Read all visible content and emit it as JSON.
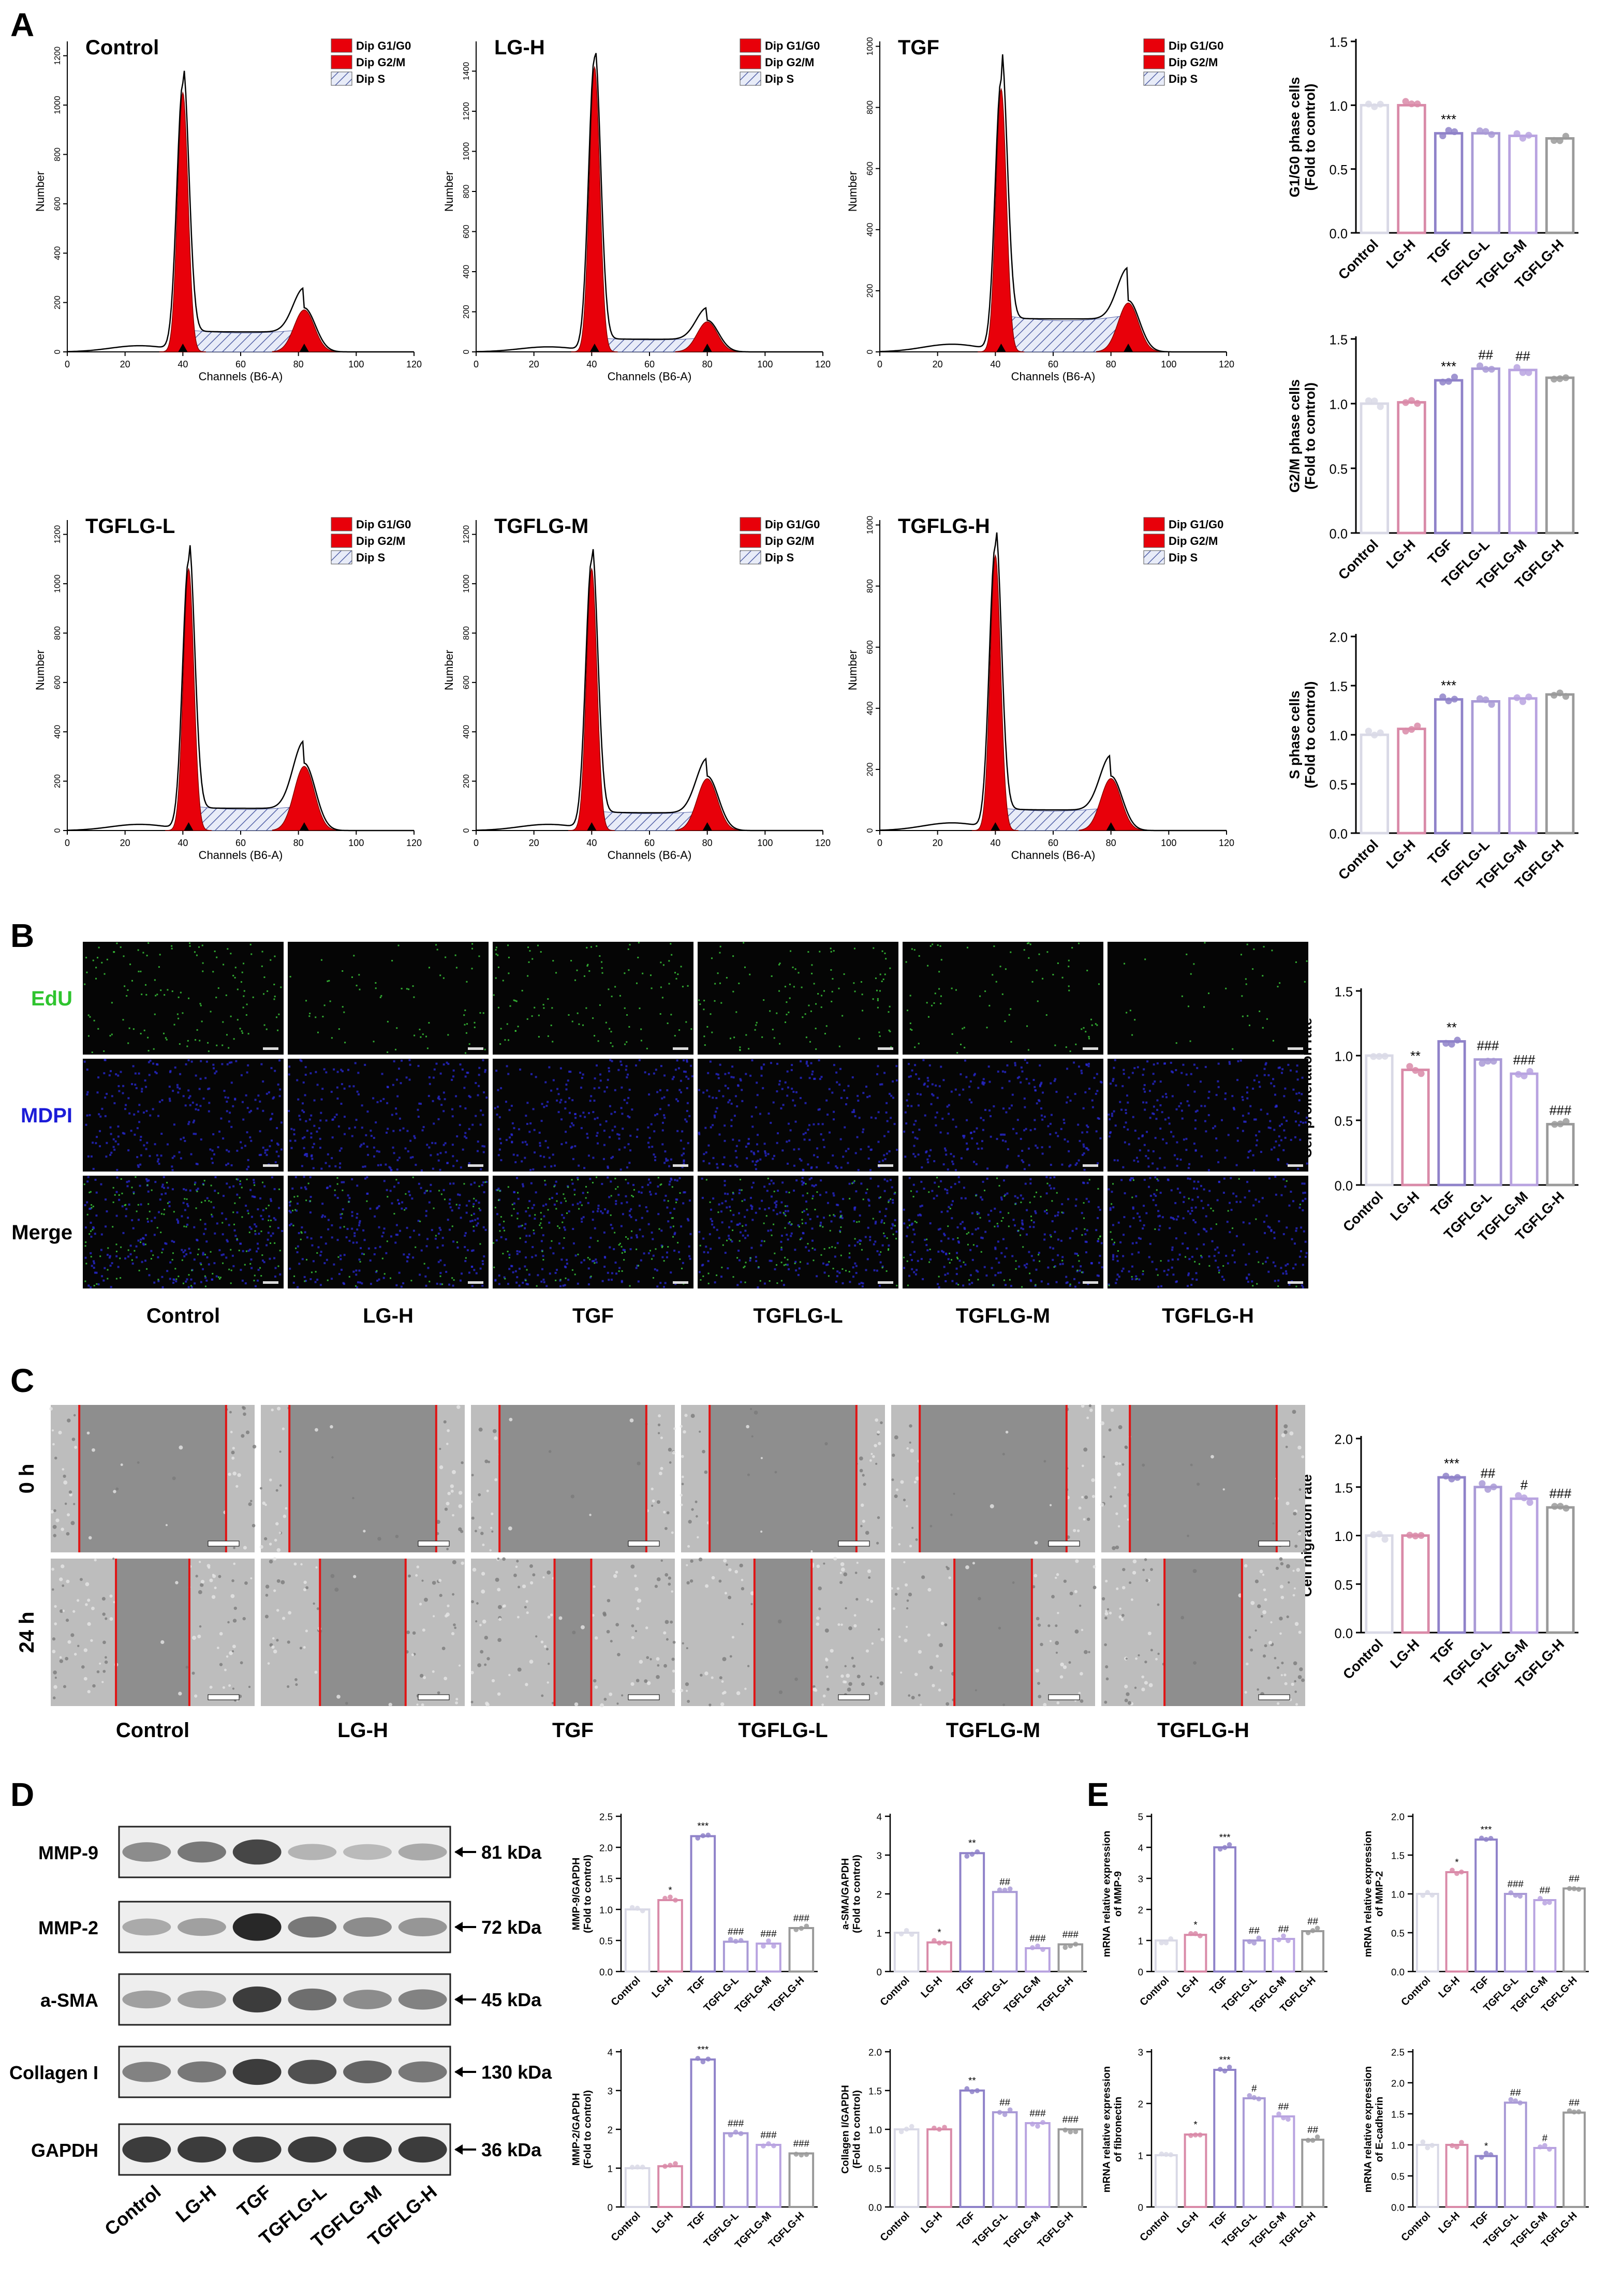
{
  "panel_labels": [
    "A",
    "B",
    "C",
    "D",
    "E"
  ],
  "groups": [
    "Control",
    "LG-H",
    "TGF",
    "TGFLG-L",
    "TGFLG-M",
    "TGFLG-H"
  ],
  "group_colors": [
    "#d9d9e6",
    "#d98aa8",
    "#8f82c9",
    "#a99ad6",
    "#b8a3e0",
    "#9a9a9a"
  ],
  "histograms": {
    "legend": [
      "Dip G1/G0",
      "Dip G2/M",
      "Dip S"
    ],
    "xlabel": "Channels (B6-A)",
    "ylabel": "Number",
    "xticks": [
      0,
      20,
      40,
      60,
      80,
      100,
      120
    ],
    "items": [
      {
        "title": "Control",
        "g1_pos": 40,
        "g1_height": 1050,
        "g2_pos": 82,
        "g2_height": 170,
        "s_level": 90,
        "ymax": 1300,
        "yticks": [
          0,
          200,
          400,
          600,
          800,
          1000,
          1200
        ]
      },
      {
        "title": "LG-H",
        "g1_pos": 41,
        "g1_height": 1420,
        "g2_pos": 80,
        "g2_height": 150,
        "s_level": 70,
        "ymax": 1600,
        "yticks": [
          0,
          200,
          400,
          600,
          800,
          1000,
          1200,
          1400
        ]
      },
      {
        "title": "TGF",
        "g1_pos": 42,
        "g1_height": 860,
        "g2_pos": 86,
        "g2_height": 160,
        "s_level": 120,
        "ymax": 1050,
        "yticks": [
          0,
          200,
          400,
          600,
          800,
          1000
        ]
      },
      {
        "title": "TGFLG-L",
        "g1_pos": 42,
        "g1_height": 1060,
        "g2_pos": 82,
        "g2_height": 260,
        "s_level": 100,
        "ymax": 1300,
        "yticks": [
          0,
          200,
          400,
          600,
          800,
          1000,
          1200
        ]
      },
      {
        "title": "TGFLG-M",
        "g1_pos": 40,
        "g1_height": 1060,
        "g2_pos": 80,
        "g2_height": 210,
        "s_level": 80,
        "ymax": 1300,
        "yticks": [
          0,
          200,
          400,
          600,
          800,
          1000,
          1200
        ]
      },
      {
        "title": "TGFLG-H",
        "g1_pos": 40,
        "g1_height": 900,
        "g2_pos": 80,
        "g2_height": 170,
        "s_level": 75,
        "ymax": 1050,
        "yticks": [
          0,
          200,
          400,
          600,
          800,
          1000
        ]
      }
    ]
  },
  "chart_data": [
    {
      "id": "g1",
      "type": "bar",
      "categories": [
        "Control",
        "LG-H",
        "TGF",
        "TGFLG-L",
        "TGFLG-M",
        "TGFLG-H"
      ],
      "values": [
        1.0,
        1.0,
        0.78,
        0.78,
        0.76,
        0.74
      ],
      "ylabel": "G1/G0 phase cells (Fold to control)",
      "ylim": [
        0,
        1.5
      ],
      "yticks": [
        0.0,
        0.5,
        1.0,
        1.5
      ],
      "annotations": [
        "",
        "",
        "***",
        "",
        "",
        ""
      ]
    },
    {
      "id": "g2m",
      "type": "bar",
      "categories": [
        "Control",
        "LG-H",
        "TGF",
        "TGFLG-L",
        "TGFLG-M",
        "TGFLG-H"
      ],
      "values": [
        1.0,
        1.01,
        1.18,
        1.27,
        1.26,
        1.2
      ],
      "ylabel": "G2/M phase cells (Fold to control)",
      "ylim": [
        0,
        1.5
      ],
      "yticks": [
        0.0,
        0.5,
        1.0,
        1.5
      ],
      "annotations": [
        "",
        "",
        "***",
        "##",
        "##",
        ""
      ]
    },
    {
      "id": "s",
      "type": "bar",
      "categories": [
        "Control",
        "LG-H",
        "TGF",
        "TGFLG-L",
        "TGFLG-M",
        "TGFLG-H"
      ],
      "values": [
        1.0,
        1.06,
        1.36,
        1.34,
        1.37,
        1.41
      ],
      "ylabel": "S phase cells (Fold to control)",
      "ylim": [
        0,
        2.0
      ],
      "yticks": [
        0.0,
        0.5,
        1.0,
        1.5,
        2.0
      ],
      "annotations": [
        "",
        "",
        "***",
        "",
        "",
        ""
      ]
    },
    {
      "id": "edu",
      "type": "bar",
      "categories": [
        "Control",
        "LG-H",
        "TGF",
        "TGFLG-L",
        "TGFLG-M",
        "TGFLG-H"
      ],
      "values": [
        1.0,
        0.89,
        1.11,
        0.97,
        0.86,
        0.47
      ],
      "ylabel": "Cell proliferation rate",
      "ylim": [
        0,
        1.5
      ],
      "yticks": [
        0.0,
        0.5,
        1.0,
        1.5
      ],
      "annotations": [
        "",
        "**",
        "**",
        "###",
        "###",
        "###"
      ]
    },
    {
      "id": "mig",
      "type": "bar",
      "categories": [
        "Control",
        "LG-H",
        "TGF",
        "TGFLG-L",
        "TGFLG-M",
        "TGFLG-H"
      ],
      "values": [
        1.0,
        1.0,
        1.6,
        1.5,
        1.38,
        1.29
      ],
      "ylabel": "Cell migration rate",
      "ylim": [
        0,
        2.0
      ],
      "yticks": [
        0.0,
        0.5,
        1.0,
        1.5,
        2.0
      ],
      "annotations": [
        "",
        "",
        "***",
        "##",
        "#",
        "###"
      ]
    },
    {
      "id": "mmp9",
      "type": "bar",
      "categories": [
        "Control",
        "LG-H",
        "TGF",
        "TGFLG-L",
        "TGFLG-M",
        "TGFLG-H"
      ],
      "values": [
        1.0,
        1.15,
        2.18,
        0.48,
        0.45,
        0.7
      ],
      "ylabel": "MMP-9/GAPDH (Fold to control)",
      "ylim": [
        0,
        2.5
      ],
      "yticks": [
        0.0,
        0.5,
        1.0,
        1.5,
        2.0,
        2.5
      ],
      "annotations": [
        "",
        "*",
        "***",
        "###",
        "###",
        "###"
      ]
    },
    {
      "id": "asma",
      "type": "bar",
      "categories": [
        "Control",
        "LG-H",
        "TGF",
        "TGFLG-L",
        "TGFLG-M",
        "TGFLG-H"
      ],
      "values": [
        1.0,
        0.75,
        3.05,
        2.05,
        0.6,
        0.7
      ],
      "ylabel": "a-SMA/GAPDH (Fold to control)",
      "ylim": [
        0,
        4
      ],
      "yticks": [
        0,
        1,
        2,
        3,
        4
      ],
      "annotations": [
        "",
        "*",
        "**",
        "##",
        "###",
        "###"
      ]
    },
    {
      "id": "mmp2",
      "type": "bar",
      "categories": [
        "Control",
        "LG-H",
        "TGF",
        "TGFLG-L",
        "TGFLG-M",
        "TGFLG-H"
      ],
      "values": [
        1.0,
        1.05,
        3.8,
        1.9,
        1.6,
        1.38
      ],
      "ylabel": "MMP-2/GAPDH (Fold to control)",
      "ylim": [
        0,
        4
      ],
      "yticks": [
        0,
        1,
        2,
        3,
        4
      ],
      "annotations": [
        "",
        "",
        "***",
        "###",
        "###",
        "###"
      ]
    },
    {
      "id": "col1",
      "type": "bar",
      "categories": [
        "Control",
        "LG-H",
        "TGF",
        "TGFLG-L",
        "TGFLG-M",
        "TGFLG-H"
      ],
      "values": [
        1.0,
        1.0,
        1.5,
        1.22,
        1.08,
        1.0
      ],
      "ylabel": "Collagen I/GAPDH (Fold to control)",
      "ylim": [
        0,
        2.0
      ],
      "yticks": [
        0.0,
        0.5,
        1.0,
        1.5,
        2.0
      ],
      "annotations": [
        "",
        "",
        "**",
        "##",
        "###",
        "###"
      ]
    },
    {
      "id": "e_mmp9",
      "type": "bar",
      "categories": [
        "Control",
        "LG-H",
        "TGF",
        "TGFLG-L",
        "TGFLG-M",
        "TGFLG-H"
      ],
      "values": [
        1.0,
        1.18,
        4.0,
        1.0,
        1.05,
        1.3
      ],
      "ylabel": "mRNA relative expression of MMP-9",
      "ylim": [
        0,
        5
      ],
      "yticks": [
        0,
        1,
        2,
        3,
        4,
        5
      ],
      "annotations": [
        "",
        "*",
        "***",
        "##",
        "##",
        "##"
      ]
    },
    {
      "id": "e_mmp2",
      "type": "bar",
      "categories": [
        "Control",
        "LG-H",
        "TGF",
        "TGFLG-L",
        "TGFLG-M",
        "TGFLG-H"
      ],
      "values": [
        1.0,
        1.28,
        1.7,
        1.0,
        0.92,
        1.07
      ],
      "ylabel": "mRNA relative expression of MMP-2",
      "ylim": [
        0,
        2.0
      ],
      "yticks": [
        0.0,
        0.5,
        1.0,
        1.5,
        2.0
      ],
      "annotations": [
        "",
        "*",
        "***",
        "###",
        "##",
        "##"
      ]
    },
    {
      "id": "e_fn",
      "type": "bar",
      "categories": [
        "Control",
        "LG-H",
        "TGF",
        "TGFLG-L",
        "TGFLG-M",
        "TGFLG-H"
      ],
      "values": [
        1.0,
        1.4,
        2.65,
        2.1,
        1.75,
        1.3
      ],
      "ylabel": "mRNA relative expression of fibronectin",
      "ylim": [
        0,
        3
      ],
      "yticks": [
        0,
        1,
        2,
        3
      ],
      "annotations": [
        "",
        "*",
        "***",
        "#",
        "##",
        "##"
      ]
    },
    {
      "id": "e_ecad",
      "type": "bar",
      "categories": [
        "Control",
        "LG-H",
        "TGF",
        "TGFLG-L",
        "TGFLG-M",
        "TGFLG-H"
      ],
      "values": [
        1.0,
        1.0,
        0.82,
        1.68,
        0.95,
        1.52
      ],
      "ylabel": "mRNA relative expression of E-cadherin",
      "ylim": [
        0,
        2.5
      ],
      "yticks": [
        0.0,
        0.5,
        1.0,
        1.5,
        2.0,
        2.5
      ],
      "annotations": [
        "",
        "",
        "*",
        "##",
        "#",
        "##"
      ]
    }
  ],
  "edu_panel": {
    "rows": [
      "EdU",
      "MDPI",
      "Merge"
    ],
    "row_colors": [
      "#2fc42f",
      "#1c1cd8",
      "#000000"
    ],
    "columns": [
      "Control",
      "LG-H",
      "TGF",
      "TGFLG-L",
      "TGFLG-M",
      "TGFLG-H"
    ],
    "green_density": [
      0.9,
      0.45,
      0.75,
      0.75,
      0.55,
      0.25
    ]
  },
  "migration_panel": {
    "rows": [
      "0 h",
      "24 h"
    ],
    "columns": [
      "Control",
      "LG-H",
      "TGF",
      "TGFLG-L",
      "TGFLG-M",
      "TGFLG-H"
    ],
    "gap_0h": [
      0.72,
      0.72,
      0.72,
      0.72,
      0.72,
      0.72
    ],
    "gap_24h": [
      0.36,
      0.42,
      0.18,
      0.28,
      0.38,
      0.38
    ]
  },
  "western_blot": {
    "proteins": [
      "MMP-9",
      "MMP-2",
      "a-SMA",
      "Collagen I",
      "GAPDH"
    ],
    "sizes": [
      "81 kDa",
      "72 kDa",
      "45 kDa",
      "130 kDa",
      "36 kDa"
    ],
    "lanes": [
      "Control",
      "LG-H",
      "TGF",
      "TGFLG-L",
      "TGFLG-M",
      "TGFLG-H"
    ],
    "intensity": [
      [
        0.45,
        0.55,
        0.8,
        0.25,
        0.22,
        0.3
      ],
      [
        0.3,
        0.35,
        0.95,
        0.55,
        0.45,
        0.4
      ],
      [
        0.35,
        0.35,
        0.85,
        0.6,
        0.45,
        0.5
      ],
      [
        0.5,
        0.55,
        0.85,
        0.75,
        0.65,
        0.55
      ],
      [
        0.85,
        0.85,
        0.85,
        0.85,
        0.85,
        0.85
      ]
    ]
  }
}
